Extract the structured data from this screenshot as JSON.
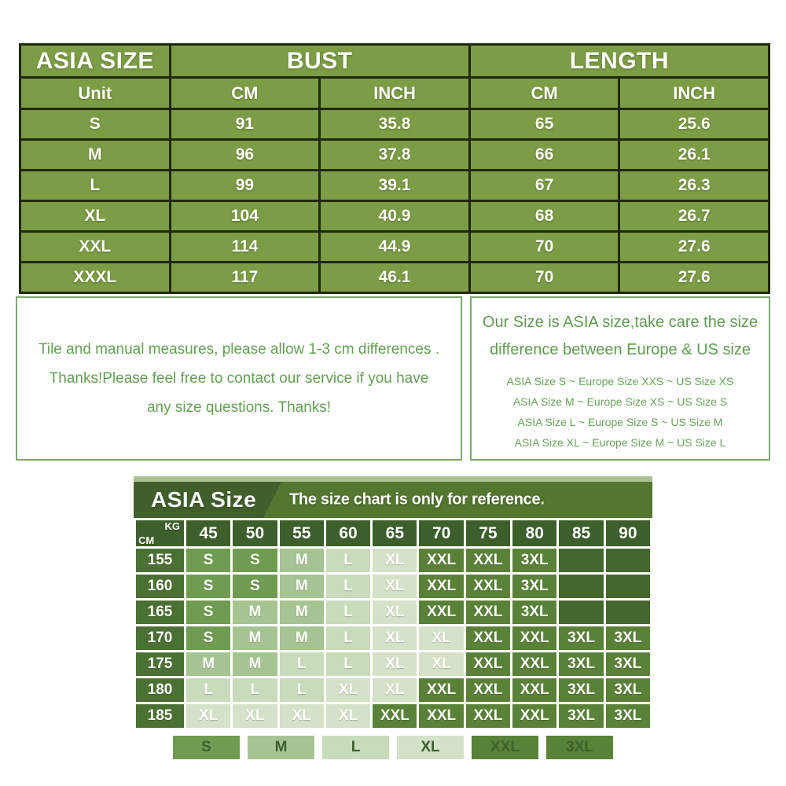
{
  "size_table": {
    "title": "ASIA SIZE",
    "group_headers": [
      "BUST",
      "LENGTH"
    ],
    "sub_headers": [
      "Unit",
      "CM",
      "INCH",
      "CM",
      "INCH"
    ],
    "rows": [
      {
        "size": "S",
        "values": [
          "91",
          "35.8",
          "65",
          "25.6"
        ]
      },
      {
        "size": "M",
        "values": [
          "96",
          "37.8",
          "66",
          "26.1"
        ]
      },
      {
        "size": "L",
        "values": [
          "99",
          "39.1",
          "67",
          "26.3"
        ]
      },
      {
        "size": "XL",
        "values": [
          "104",
          "40.9",
          "68",
          "26.7"
        ]
      },
      {
        "size": "XXL",
        "values": [
          "114",
          "44.9",
          "70",
          "27.6"
        ]
      },
      {
        "size": "XXXL",
        "values": [
          "117",
          "46.1",
          "70",
          "27.6"
        ]
      }
    ],
    "cell_color": "#7c9c45",
    "border_color": "#20290f"
  },
  "notes": {
    "measure_note_lines": [
      "Tile and manual measures, please allow 1-3 cm differences .",
      "Thanks!Please feel free to contact our service if you have",
      "any size questions. Thanks!"
    ],
    "region_note_title_lines": [
      "Our Size is ASIA size,take care the size",
      "difference between Europe & US size"
    ],
    "region_note_lines": [
      "ASIA Size S  ~  Europe Size XXS  ~  US Size XS",
      "ASIA Size M  ~  Europe Size XS  ~  US Size S",
      "ASIA Size L ~  Europe Size S  ~  US Size M",
      "ASIA Size XL ~  Europe Size M  ~  US Size L"
    ],
    "text_color": "#64a054",
    "border_color": "#7aaa6c"
  },
  "weight_chart": {
    "title": "ASIA Size",
    "subtitle": "The size chart is only for reference.",
    "kg_label": "KG",
    "cm_label": "CM",
    "weights": [
      "45",
      "50",
      "55",
      "60",
      "65",
      "70",
      "75",
      "80",
      "85",
      "90"
    ],
    "rows": [
      {
        "height": "155",
        "cells": [
          "S",
          "S",
          "M",
          "L",
          "XL",
          "XXL",
          "XXL",
          "3XL",
          "",
          ""
        ]
      },
      {
        "height": "160",
        "cells": [
          "S",
          "S",
          "M",
          "L",
          "XL",
          "XXL",
          "XXL",
          "3XL",
          "",
          ""
        ]
      },
      {
        "height": "165",
        "cells": [
          "S",
          "M",
          "M",
          "L",
          "XL",
          "XXL",
          "XXL",
          "3XL",
          "",
          ""
        ]
      },
      {
        "height": "170",
        "cells": [
          "S",
          "M",
          "M",
          "L",
          "XL",
          "XL",
          "XXL",
          "XXL",
          "3XL",
          "3XL"
        ]
      },
      {
        "height": "175",
        "cells": [
          "M",
          "M",
          "L",
          "L",
          "XL",
          "XL",
          "XXL",
          "XXL",
          "3XL",
          "3XL"
        ]
      },
      {
        "height": "180",
        "cells": [
          "L",
          "L",
          "L",
          "XL",
          "XL",
          "XXL",
          "XXL",
          "XXL",
          "3XL",
          "3XL"
        ]
      },
      {
        "height": "185",
        "cells": [
          "XL",
          "XL",
          "XL",
          "XL",
          "XXL",
          "XXL",
          "XXL",
          "XXL",
          "3XL",
          "3XL"
        ]
      }
    ],
    "legend": [
      "S",
      "M",
      "L",
      "XL",
      "XXL",
      "3XL"
    ],
    "size_colors": {
      "S": "#6f9c50",
      "M": "#a6c491",
      "L": "#c8dbba",
      "XL": "#d3e2c8",
      "XXL": "#5a8138",
      "3XL": "#5a8138",
      "empty": "#44672d"
    },
    "header_dark_color": "#415f2b",
    "header_light_color": "#53772f",
    "axis_cell_color": "#3c5f2b",
    "height_cell_color": "#4b7034",
    "legend_text_color": "#3d6030"
  }
}
